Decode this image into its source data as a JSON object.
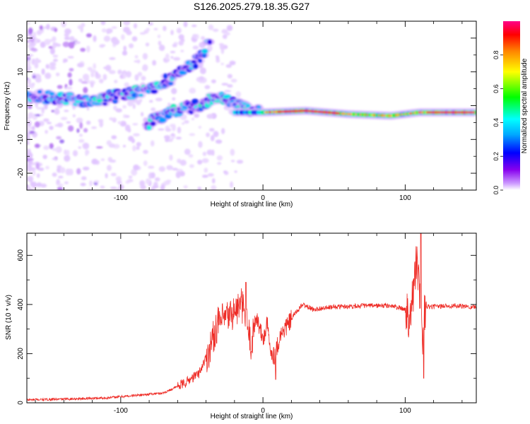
{
  "title": "S126.2025.279.18.35.G27",
  "colors": {
    "snr_line": "#ee2a24",
    "frame": "#000000"
  },
  "chart_data": [
    {
      "type": "heatmap",
      "title": "S126.2025.279.18.35.G27",
      "xlabel": "Height of straight line (km)",
      "ylabel": "Frequency (Hz)",
      "xlim": [
        -166,
        150
      ],
      "ylim": [
        -25,
        25
      ],
      "xticks": [
        -100,
        0,
        100
      ],
      "yticks": [
        -20,
        -10,
        0,
        10,
        20
      ],
      "xtick_labels": [
        "-100",
        "0",
        "100"
      ],
      "ytick_labels": [
        "-20",
        "-10",
        "0",
        "10",
        "20"
      ],
      "colorbar": {
        "label": "Normalized spectral amplitude",
        "range": [
          0,
          1
        ],
        "ticks": [
          0.0,
          0.2,
          0.4,
          0.6,
          0.8
        ],
        "tick_labels": [
          "0.0",
          "0.2",
          "0.4",
          "0.6",
          "0.8"
        ]
      },
      "ridges": [
        {
          "name": "upper branch",
          "points": [
            [
              -166,
              3
            ],
            [
              -140,
              2
            ],
            [
              -120,
              1.5
            ],
            [
              -100,
              3
            ],
            [
              -80,
              5
            ],
            [
              -60,
              9
            ],
            [
              -45,
              14
            ],
            [
              -35,
              20
            ]
          ]
        },
        {
          "name": "lower branch",
          "points": [
            [
              -80,
              -5
            ],
            [
              -60,
              -1
            ],
            [
              -45,
              0
            ],
            [
              -30,
              3
            ],
            [
              -20,
              1
            ],
            [
              -10,
              -1
            ],
            [
              0,
              -2
            ]
          ]
        },
        {
          "name": "main line",
          "points": [
            [
              0,
              -2
            ],
            [
              30,
              -1.5
            ],
            [
              60,
              -2.5
            ],
            [
              90,
              -3
            ],
            [
              110,
              -2
            ],
            [
              150,
              -2
            ]
          ]
        }
      ]
    },
    {
      "type": "line",
      "xlabel": "Height of straight line (km)",
      "ylabel": "SNR (10 * v/v)",
      "xlim": [
        -166,
        150
      ],
      "ylim": [
        0,
        690
      ],
      "xticks": [
        -100,
        0,
        100
      ],
      "yticks": [
        0,
        200,
        400,
        600
      ],
      "xtick_labels": [
        "-100",
        "0",
        "100"
      ],
      "ytick_labels": [
        "0",
        "200",
        "400",
        "600"
      ],
      "series": [
        {
          "name": "SNR",
          "x": [
            -166,
            -140,
            -110,
            -90,
            -70,
            -55,
            -45,
            -38,
            -32,
            -25,
            -20,
            -15,
            -12,
            -8,
            -5,
            0,
            3,
            5,
            8,
            12,
            15,
            18,
            22,
            28,
            35,
            50,
            70,
            90,
            100,
            103,
            106,
            108,
            110,
            112,
            114,
            118,
            130,
            150
          ],
          "values": [
            12,
            15,
            20,
            30,
            40,
            80,
            120,
            210,
            320,
            350,
            370,
            400,
            340,
            230,
            360,
            255,
            320,
            220,
            190,
            270,
            300,
            320,
            360,
            400,
            380,
            390,
            395,
            395,
            380,
            360,
            450,
            600,
            430,
            250,
            390,
            390,
            395,
            390
          ],
          "notable_peaks": [
            [
              -12,
              490
            ],
            [
              111,
              690
            ]
          ],
          "notable_dips": [
            [
              9,
              95
            ],
            [
              113,
              100
            ]
          ]
        }
      ]
    }
  ]
}
